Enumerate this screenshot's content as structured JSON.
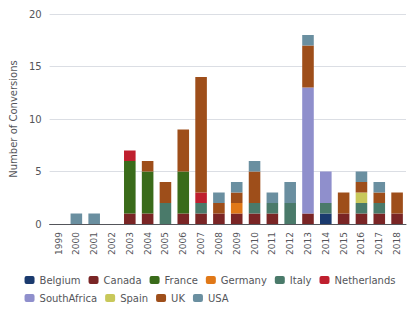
{
  "chart_data": {
    "type": "bar",
    "stacked": true,
    "grid": true,
    "legend": "bottom",
    "ylabel": "Number of Conversions",
    "categories": [
      "1999",
      "2000",
      "2001",
      "2002",
      "2003",
      "2004",
      "2005",
      "2006",
      "2007",
      "2008",
      "2009",
      "2010",
      "2011",
      "2012",
      "2013",
      "2014",
      "2015",
      "2016",
      "2017",
      "2018"
    ],
    "ylim": [
      0,
      20
    ],
    "yticks": [
      0,
      5,
      10,
      15,
      20
    ],
    "series": [
      {
        "name": "Belgium",
        "color": "#1a3a6e",
        "values": [
          0,
          0,
          0,
          0,
          0,
          0,
          0,
          0,
          0,
          0,
          0,
          0,
          0,
          0,
          0,
          1,
          0,
          0,
          0,
          0
        ]
      },
      {
        "name": "Canada",
        "color": "#7a2525",
        "values": [
          0,
          0,
          0,
          0,
          1,
          1,
          0,
          1,
          1,
          1,
          1,
          1,
          1,
          0,
          1,
          0,
          1,
          1,
          1,
          1
        ]
      },
      {
        "name": "France",
        "color": "#3a6b1a",
        "values": [
          0,
          0,
          0,
          0,
          5,
          4,
          0,
          4,
          0,
          0,
          0,
          0,
          0,
          0,
          0,
          0,
          0,
          0,
          0,
          0
        ]
      },
      {
        "name": "Germany",
        "color": "#e07818",
        "values": [
          0,
          0,
          0,
          0,
          0,
          0,
          0,
          0,
          0,
          0,
          1,
          0,
          0,
          0,
          0,
          0,
          0,
          0,
          0,
          0
        ]
      },
      {
        "name": "Italy",
        "color": "#4a7a6a",
        "values": [
          0,
          0,
          0,
          0,
          0,
          0,
          2,
          0,
          1,
          0,
          0,
          1,
          1,
          2,
          0,
          1,
          0,
          1,
          1,
          0
        ]
      },
      {
        "name": "Netherlands",
        "color": "#bf1f2e",
        "values": [
          0,
          0,
          0,
          0,
          1,
          0,
          0,
          0,
          1,
          0,
          0,
          0,
          0,
          0,
          0,
          0,
          0,
          0,
          0,
          0
        ]
      },
      {
        "name": "SouthAfrica",
        "color": "#8f8fcc",
        "values": [
          0,
          0,
          0,
          0,
          0,
          0,
          0,
          0,
          0,
          0,
          0,
          0,
          0,
          0,
          12,
          3,
          0,
          0,
          0,
          0
        ]
      },
      {
        "name": "Spain",
        "color": "#c8c85a",
        "values": [
          0,
          0,
          0,
          0,
          0,
          0,
          0,
          0,
          0,
          0,
          0,
          0,
          0,
          0,
          0,
          0,
          0,
          1,
          0,
          0
        ]
      },
      {
        "name": "UK",
        "color": "#9e4e1a",
        "values": [
          0,
          0,
          0,
          0,
          0,
          1,
          2,
          4,
          11,
          1,
          1,
          3,
          0,
          0,
          4,
          0,
          2,
          1,
          1,
          2
        ]
      },
      {
        "name": "USA",
        "color": "#6a8fa0",
        "values": [
          0,
          1,
          1,
          0,
          0,
          0,
          0,
          0,
          0,
          1,
          1,
          1,
          1,
          2,
          1,
          0,
          0,
          1,
          1,
          0
        ]
      }
    ]
  }
}
